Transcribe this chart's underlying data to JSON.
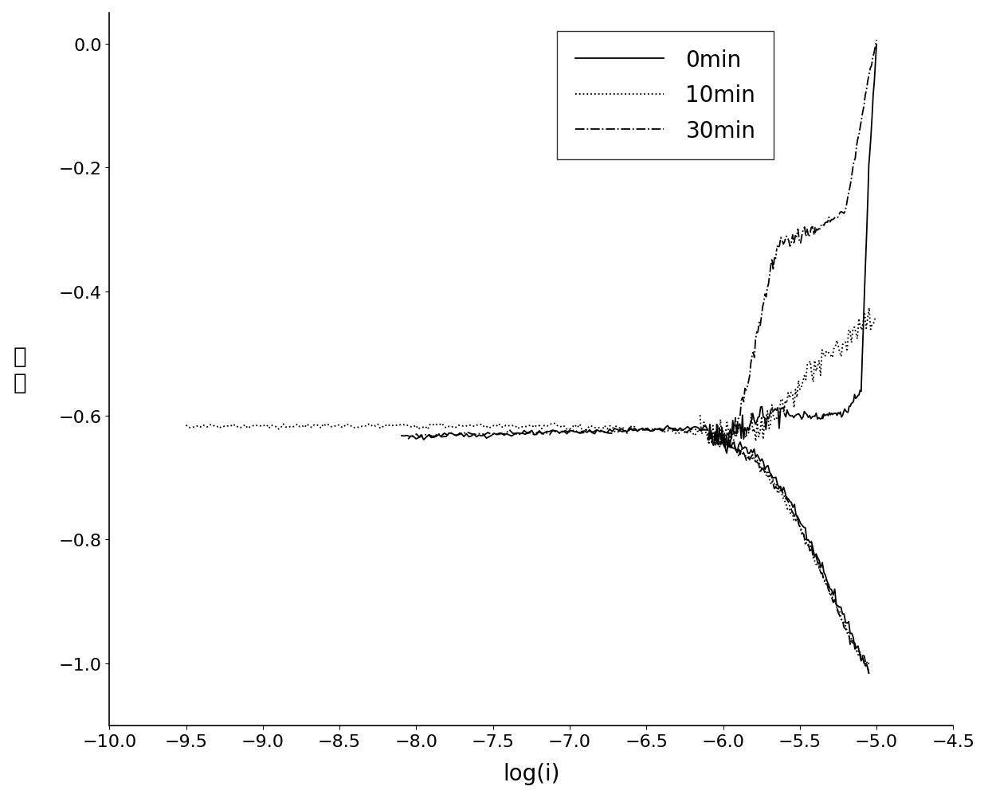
{
  "title": "",
  "xlabel": "log(i)",
  "ylabel": "电\n位",
  "xlim": [
    -10.0,
    -4.5
  ],
  "ylim": [
    -1.1,
    0.05
  ],
  "xticks": [
    -10.0,
    -9.5,
    -9.0,
    -8.5,
    -8.0,
    -7.5,
    -7.0,
    -6.5,
    -6.0,
    -5.5,
    -5.0,
    -4.5
  ],
  "yticks": [
    0.0,
    -0.2,
    -0.4,
    -0.6,
    -0.8,
    -1.0
  ],
  "legend_labels": [
    "0min",
    "10min",
    "30min"
  ],
  "legend_linestyles": [
    "-",
    ":",
    "-."
  ],
  "background_color": "#ffffff",
  "line_color": "#000000",
  "xlabel_fontsize": 20,
  "ylabel_fontsize": 20,
  "tick_fontsize": 16,
  "legend_fontsize": 20
}
